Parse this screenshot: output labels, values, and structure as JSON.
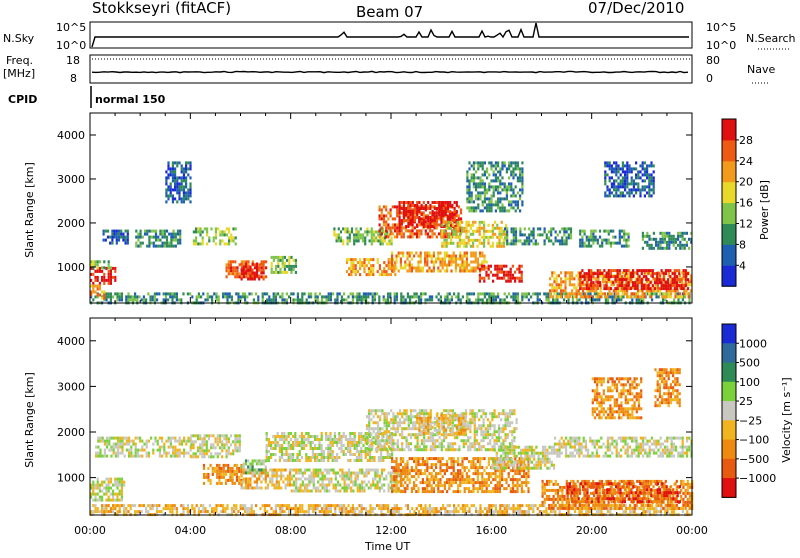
{
  "header": {
    "station": "Stokkseyri (fitACF)",
    "beam": "Beam 07",
    "date": "07/Dec/2010"
  },
  "summary": {
    "nsky_label": "N.Sky",
    "nsky_ticks": [
      "10^5",
      "10^0"
    ],
    "nsearch_label": "N.Search",
    "nsearch_ticks": [
      "10^5",
      "10^0"
    ],
    "freq_label_1": "Freq.",
    "freq_label_2": "[MHz]",
    "freq_ticks": [
      "18",
      "8"
    ],
    "nave_label": "Nave",
    "nave_ticks": [
      "80",
      "0"
    ],
    "cpid_label": "CPID",
    "cpid_value": "normal 150"
  },
  "colors": {
    "power_scale": [
      "#1a2bd6",
      "#1f5fb0",
      "#2e8b57",
      "#7fc44a",
      "#e8d82a",
      "#f29a1c",
      "#ee5a12",
      "#e01010"
    ],
    "velocity_scale": [
      "#1a2bd6",
      "#2f6a9a",
      "#2e8b57",
      "#7bd13a",
      "#c8c8c0",
      "#f0b420",
      "#ee8a10",
      "#e85a10",
      "#e01010"
    ]
  },
  "chart_data": [
    {
      "type": "heatmap",
      "name": "power",
      "ylabel": "Slant Range [km]",
      "xlabel": "",
      "x_ticks": [
        "00:00",
        "04:00",
        "08:00",
        "12:00",
        "16:00",
        "20:00",
        "00:00"
      ],
      "y_ticks": [
        "1000",
        "2000",
        "3000",
        "4000"
      ],
      "xlim": [
        0,
        24
      ],
      "ylim": [
        180,
        4500
      ],
      "colorbar_label": "Power [dB]",
      "colorbar_ticks": [
        "4",
        "8",
        "12",
        "16",
        "20",
        "24",
        "28"
      ],
      "bands": [
        {
          "t0": 0.0,
          "t1": 24.0,
          "r0": 200,
          "r1": 420,
          "level": 2
        },
        {
          "t0": 0.0,
          "t1": 1.0,
          "r0": 600,
          "r1": 1000,
          "level": 7
        },
        {
          "t0": 0.0,
          "t1": 0.6,
          "r0": 300,
          "r1": 600,
          "level": 5
        },
        {
          "t0": 0.0,
          "t1": 0.8,
          "r0": 1000,
          "r1": 1150,
          "level": 3
        },
        {
          "t0": 0.5,
          "t1": 1.5,
          "r0": 1550,
          "r1": 1850,
          "level": 1
        },
        {
          "t0": 1.8,
          "t1": 3.6,
          "r0": 1500,
          "r1": 1850,
          "level": 2
        },
        {
          "t0": 4.1,
          "t1": 5.8,
          "r0": 1500,
          "r1": 1900,
          "level": 3
        },
        {
          "t0": 5.4,
          "t1": 7.0,
          "r0": 800,
          "r1": 1150,
          "level": 6
        },
        {
          "t0": 6.0,
          "t1": 6.9,
          "r0": 700,
          "r1": 1100,
          "level": 7
        },
        {
          "t0": 7.2,
          "t1": 8.2,
          "r0": 900,
          "r1": 1250,
          "level": 3
        },
        {
          "t0": 9.7,
          "t1": 12.0,
          "r0": 1550,
          "r1": 1900,
          "level": 3
        },
        {
          "t0": 10.2,
          "t1": 12.2,
          "r0": 800,
          "r1": 1200,
          "level": 5
        },
        {
          "t0": 11.5,
          "t1": 14.8,
          "r0": 1700,
          "r1": 2400,
          "level": 6
        },
        {
          "t0": 12.3,
          "t1": 14.6,
          "r0": 1900,
          "r1": 2500,
          "level": 7
        },
        {
          "t0": 12.0,
          "t1": 15.8,
          "r0": 900,
          "r1": 1350,
          "level": 5
        },
        {
          "t0": 14.0,
          "t1": 16.6,
          "r0": 1500,
          "r1": 2050,
          "level": 4
        },
        {
          "t0": 15.5,
          "t1": 17.2,
          "r0": 650,
          "r1": 1050,
          "level": 7
        },
        {
          "t0": 16.5,
          "t1": 19.2,
          "r0": 1500,
          "r1": 1900,
          "level": 2
        },
        {
          "t0": 18.3,
          "t1": 24.0,
          "r0": 350,
          "r1": 900,
          "level": 5
        },
        {
          "t0": 19.5,
          "t1": 23.8,
          "r0": 500,
          "r1": 950,
          "level": 7
        },
        {
          "t0": 19.5,
          "t1": 21.5,
          "r0": 1500,
          "r1": 1850,
          "level": 2
        },
        {
          "t0": 22.0,
          "t1": 24.0,
          "r0": 1450,
          "r1": 1800,
          "level": 2
        },
        {
          "t0": 20.5,
          "t1": 22.5,
          "r0": 2600,
          "r1": 3400,
          "level": 1
        },
        {
          "t0": 3.0,
          "t1": 4.0,
          "r0": 2500,
          "r1": 3400,
          "level": 1
        },
        {
          "t0": 15.0,
          "t1": 17.2,
          "r0": 2300,
          "r1": 3400,
          "level": 2
        }
      ]
    },
    {
      "type": "heatmap",
      "name": "velocity",
      "ylabel": "Slant Range [km]",
      "xlabel": "Time UT",
      "x_ticks": [
        "00:00",
        "04:00",
        "08:00",
        "12:00",
        "16:00",
        "20:00",
        "00:00"
      ],
      "y_ticks": [
        "1000",
        "2000",
        "3000",
        "4000"
      ],
      "xlim": [
        0,
        24
      ],
      "ylim": [
        180,
        4500
      ],
      "colorbar_label": "Velocity [m s⁻¹]",
      "colorbar_ticks": [
        "1000",
        "500",
        "100",
        "25",
        "−25",
        "−100",
        "−500",
        "−1000"
      ],
      "bands": [
        {
          "t0": 0.0,
          "t1": 24.0,
          "r0": 200,
          "r1": 420,
          "level": 5
        },
        {
          "t0": 0.0,
          "t1": 1.4,
          "r0": 500,
          "r1": 1000,
          "level": 4
        },
        {
          "t0": 0.2,
          "t1": 4.0,
          "r0": 1500,
          "r1": 1900,
          "level": 4
        },
        {
          "t0": 4.0,
          "t1": 6.0,
          "r0": 1450,
          "r1": 1950,
          "level": 4
        },
        {
          "t0": 4.5,
          "t1": 6.0,
          "r0": 900,
          "r1": 1300,
          "level": 6
        },
        {
          "t0": 6.0,
          "t1": 8.0,
          "r0": 800,
          "r1": 1200,
          "level": 5
        },
        {
          "t0": 6.0,
          "t1": 7.0,
          "r0": 1100,
          "r1": 1400,
          "level": 3
        },
        {
          "t0": 7.0,
          "t1": 12.0,
          "r0": 1400,
          "r1": 2000,
          "level": 4
        },
        {
          "t0": 8.0,
          "t1": 12.5,
          "r0": 700,
          "r1": 1200,
          "level": 4
        },
        {
          "t0": 11.0,
          "t1": 17.0,
          "r0": 1600,
          "r1": 2500,
          "level": 4
        },
        {
          "t0": 12.0,
          "t1": 17.5,
          "r0": 700,
          "r1": 1450,
          "level": 6
        },
        {
          "t0": 13.0,
          "t1": 15.0,
          "r0": 2000,
          "r1": 2400,
          "level": 5
        },
        {
          "t0": 16.0,
          "t1": 18.5,
          "r0": 1200,
          "r1": 1700,
          "level": 4
        },
        {
          "t0": 18.0,
          "t1": 24.0,
          "r0": 300,
          "r1": 950,
          "level": 6
        },
        {
          "t0": 19.0,
          "t1": 23.5,
          "r0": 500,
          "r1": 900,
          "level": 7
        },
        {
          "t0": 18.5,
          "t1": 24.0,
          "r0": 1500,
          "r1": 1900,
          "level": 4
        },
        {
          "t0": 20.0,
          "t1": 22.0,
          "r0": 2300,
          "r1": 3200,
          "level": 6
        },
        {
          "t0": 22.5,
          "t1": 23.5,
          "r0": 2600,
          "r1": 3400,
          "level": 6
        }
      ]
    }
  ]
}
